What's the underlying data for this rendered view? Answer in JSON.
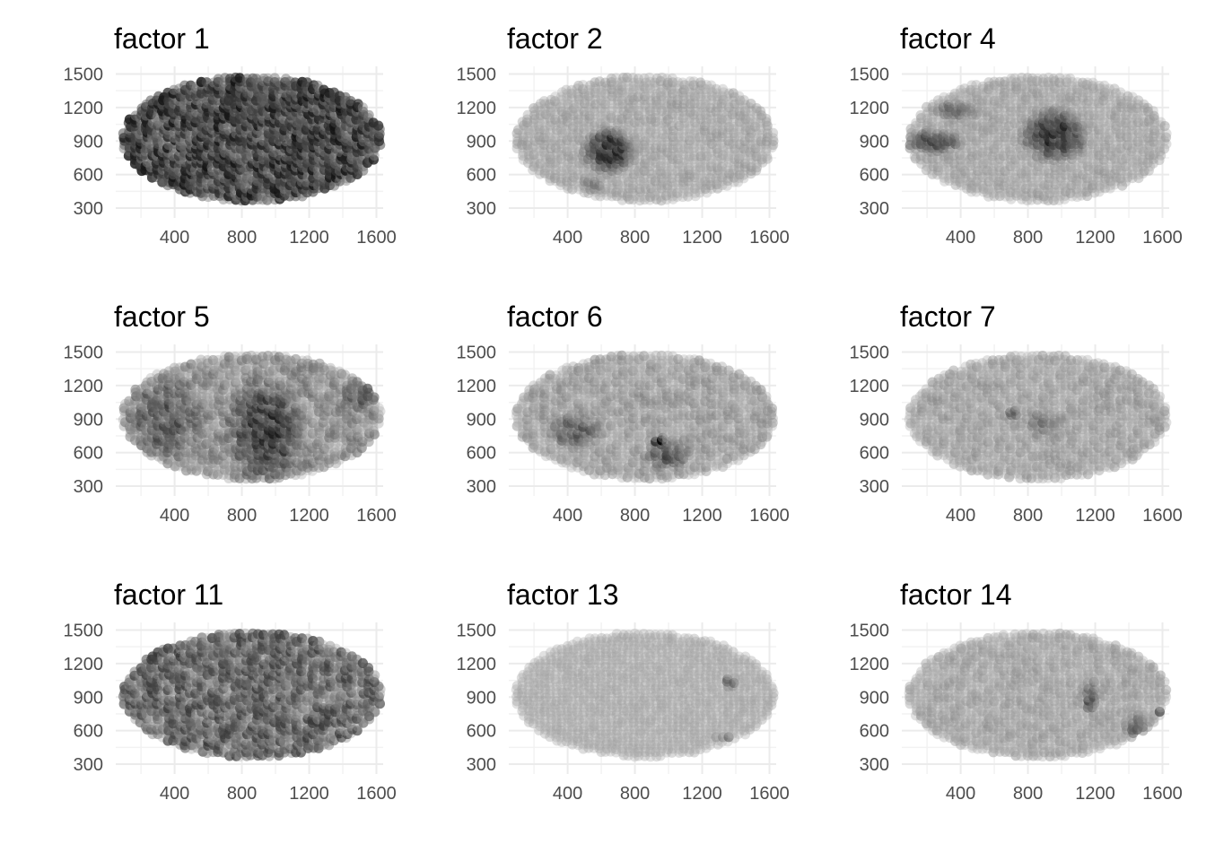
{
  "chart_data": [
    {
      "type": "scatter",
      "title": "factor  1",
      "xticks": [
        400,
        800,
        1200,
        1600
      ],
      "yticks": [
        300,
        600,
        900,
        1200,
        1500
      ],
      "xlim": [
        50,
        1640
      ],
      "ylim": [
        260,
        1520
      ],
      "grid": true,
      "color": "#000000",
      "intensity": {
        "base": 0.55,
        "spread": 0.35,
        "hotspots": []
      }
    },
    {
      "type": "scatter",
      "title": "factor  2",
      "xticks": [
        400,
        800,
        1200,
        1600
      ],
      "yticks": [
        300,
        600,
        900,
        1200,
        1500
      ],
      "xlim": [
        50,
        1640
      ],
      "ylim": [
        260,
        1520
      ],
      "grid": true,
      "color": "#000000",
      "intensity": {
        "base": 0.05,
        "spread": 0.12,
        "hotspots": [
          {
            "x": 650,
            "y": 820,
            "rx": 170,
            "ry": 220,
            "v": 0.75
          },
          {
            "x": 550,
            "y": 520,
            "rx": 90,
            "ry": 80,
            "v": 0.3
          }
        ]
      }
    },
    {
      "type": "scatter",
      "title": "factor  4",
      "xticks": [
        400,
        800,
        1200,
        1600
      ],
      "yticks": [
        300,
        600,
        900,
        1200,
        1500
      ],
      "xlim": [
        50,
        1640
      ],
      "ylim": [
        260,
        1520
      ],
      "grid": true,
      "color": "#000000",
      "intensity": {
        "base": 0.05,
        "spread": 0.12,
        "hotspots": [
          {
            "x": 960,
            "y": 950,
            "rx": 220,
            "ry": 260,
            "v": 0.7
          },
          {
            "x": 240,
            "y": 900,
            "rx": 200,
            "ry": 110,
            "v": 0.55
          },
          {
            "x": 380,
            "y": 1180,
            "rx": 150,
            "ry": 90,
            "v": 0.4
          }
        ]
      }
    },
    {
      "type": "scatter",
      "title": "factor  5",
      "xticks": [
        400,
        800,
        1200,
        1600
      ],
      "yticks": [
        300,
        600,
        900,
        1200,
        1500
      ],
      "xlim": [
        50,
        1640
      ],
      "ylim": [
        260,
        1520
      ],
      "grid": true,
      "color": "#000000",
      "intensity": {
        "base": 0.15,
        "spread": 0.25,
        "hotspots": [
          {
            "x": 950,
            "y": 800,
            "rx": 250,
            "ry": 500,
            "v": 0.5
          },
          {
            "x": 350,
            "y": 900,
            "rx": 260,
            "ry": 450,
            "v": 0.3
          },
          {
            "x": 1500,
            "y": 1100,
            "rx": 100,
            "ry": 150,
            "v": 0.3
          }
        ]
      }
    },
    {
      "type": "scatter",
      "title": "factor  6",
      "xticks": [
        400,
        800,
        1200,
        1600
      ],
      "yticks": [
        300,
        600,
        900,
        1200,
        1500
      ],
      "xlim": [
        50,
        1640
      ],
      "ylim": [
        260,
        1520
      ],
      "grid": true,
      "color": "#000000",
      "intensity": {
        "base": 0.06,
        "spread": 0.2,
        "hotspots": [
          {
            "x": 450,
            "y": 800,
            "rx": 180,
            "ry": 180,
            "v": 0.4
          },
          {
            "x": 1000,
            "y": 600,
            "rx": 160,
            "ry": 150,
            "v": 0.45
          },
          {
            "x": 950,
            "y": 710,
            "rx": 40,
            "ry": 40,
            "v": 0.8
          }
        ]
      }
    },
    {
      "type": "scatter",
      "title": "factor  7",
      "xticks": [
        400,
        800,
        1200,
        1600
      ],
      "yticks": [
        300,
        600,
        900,
        1200,
        1500
      ],
      "xlim": [
        50,
        1640
      ],
      "ylim": [
        260,
        1520
      ],
      "grid": true,
      "color": "#000000",
      "intensity": {
        "base": 0.04,
        "spread": 0.18,
        "hotspots": [
          {
            "x": 720,
            "y": 960,
            "rx": 40,
            "ry": 40,
            "v": 0.6
          },
          {
            "x": 900,
            "y": 850,
            "rx": 120,
            "ry": 160,
            "v": 0.25
          }
        ]
      }
    },
    {
      "type": "scatter",
      "title": "factor  11",
      "xticks": [
        400,
        800,
        1200,
        1600
      ],
      "yticks": [
        300,
        600,
        900,
        1200,
        1500
      ],
      "xlim": [
        50,
        1640
      ],
      "ylim": [
        260,
        1520
      ],
      "grid": true,
      "color": "#000000",
      "intensity": {
        "base": 0.35,
        "spread": 0.35,
        "hotspots": []
      }
    },
    {
      "type": "scatter",
      "title": "factor  13",
      "xticks": [
        400,
        800,
        1200,
        1600
      ],
      "yticks": [
        300,
        600,
        900,
        1200,
        1500
      ],
      "xlim": [
        50,
        1640
      ],
      "ylim": [
        260,
        1520
      ],
      "grid": true,
      "color": "#000000",
      "intensity": {
        "base": 0.02,
        "spread": 0.05,
        "hotspots": [
          {
            "x": 1370,
            "y": 1040,
            "rx": 40,
            "ry": 60,
            "v": 0.6
          },
          {
            "x": 1330,
            "y": 540,
            "rx": 70,
            "ry": 30,
            "v": 0.45
          }
        ]
      }
    },
    {
      "type": "scatter",
      "title": "factor  14",
      "xticks": [
        400,
        800,
        1200,
        1600
      ],
      "yticks": [
        300,
        600,
        900,
        1200,
        1500
      ],
      "xlim": [
        50,
        1640
      ],
      "ylim": [
        260,
        1520
      ],
      "grid": true,
      "color": "#000000",
      "intensity": {
        "base": 0.04,
        "spread": 0.15,
        "hotspots": [
          {
            "x": 1600,
            "y": 780,
            "rx": 30,
            "ry": 30,
            "v": 0.95
          },
          {
            "x": 1180,
            "y": 900,
            "rx": 50,
            "ry": 200,
            "v": 0.55
          },
          {
            "x": 1450,
            "y": 650,
            "rx": 100,
            "ry": 120,
            "v": 0.4
          }
        ]
      }
    }
  ]
}
